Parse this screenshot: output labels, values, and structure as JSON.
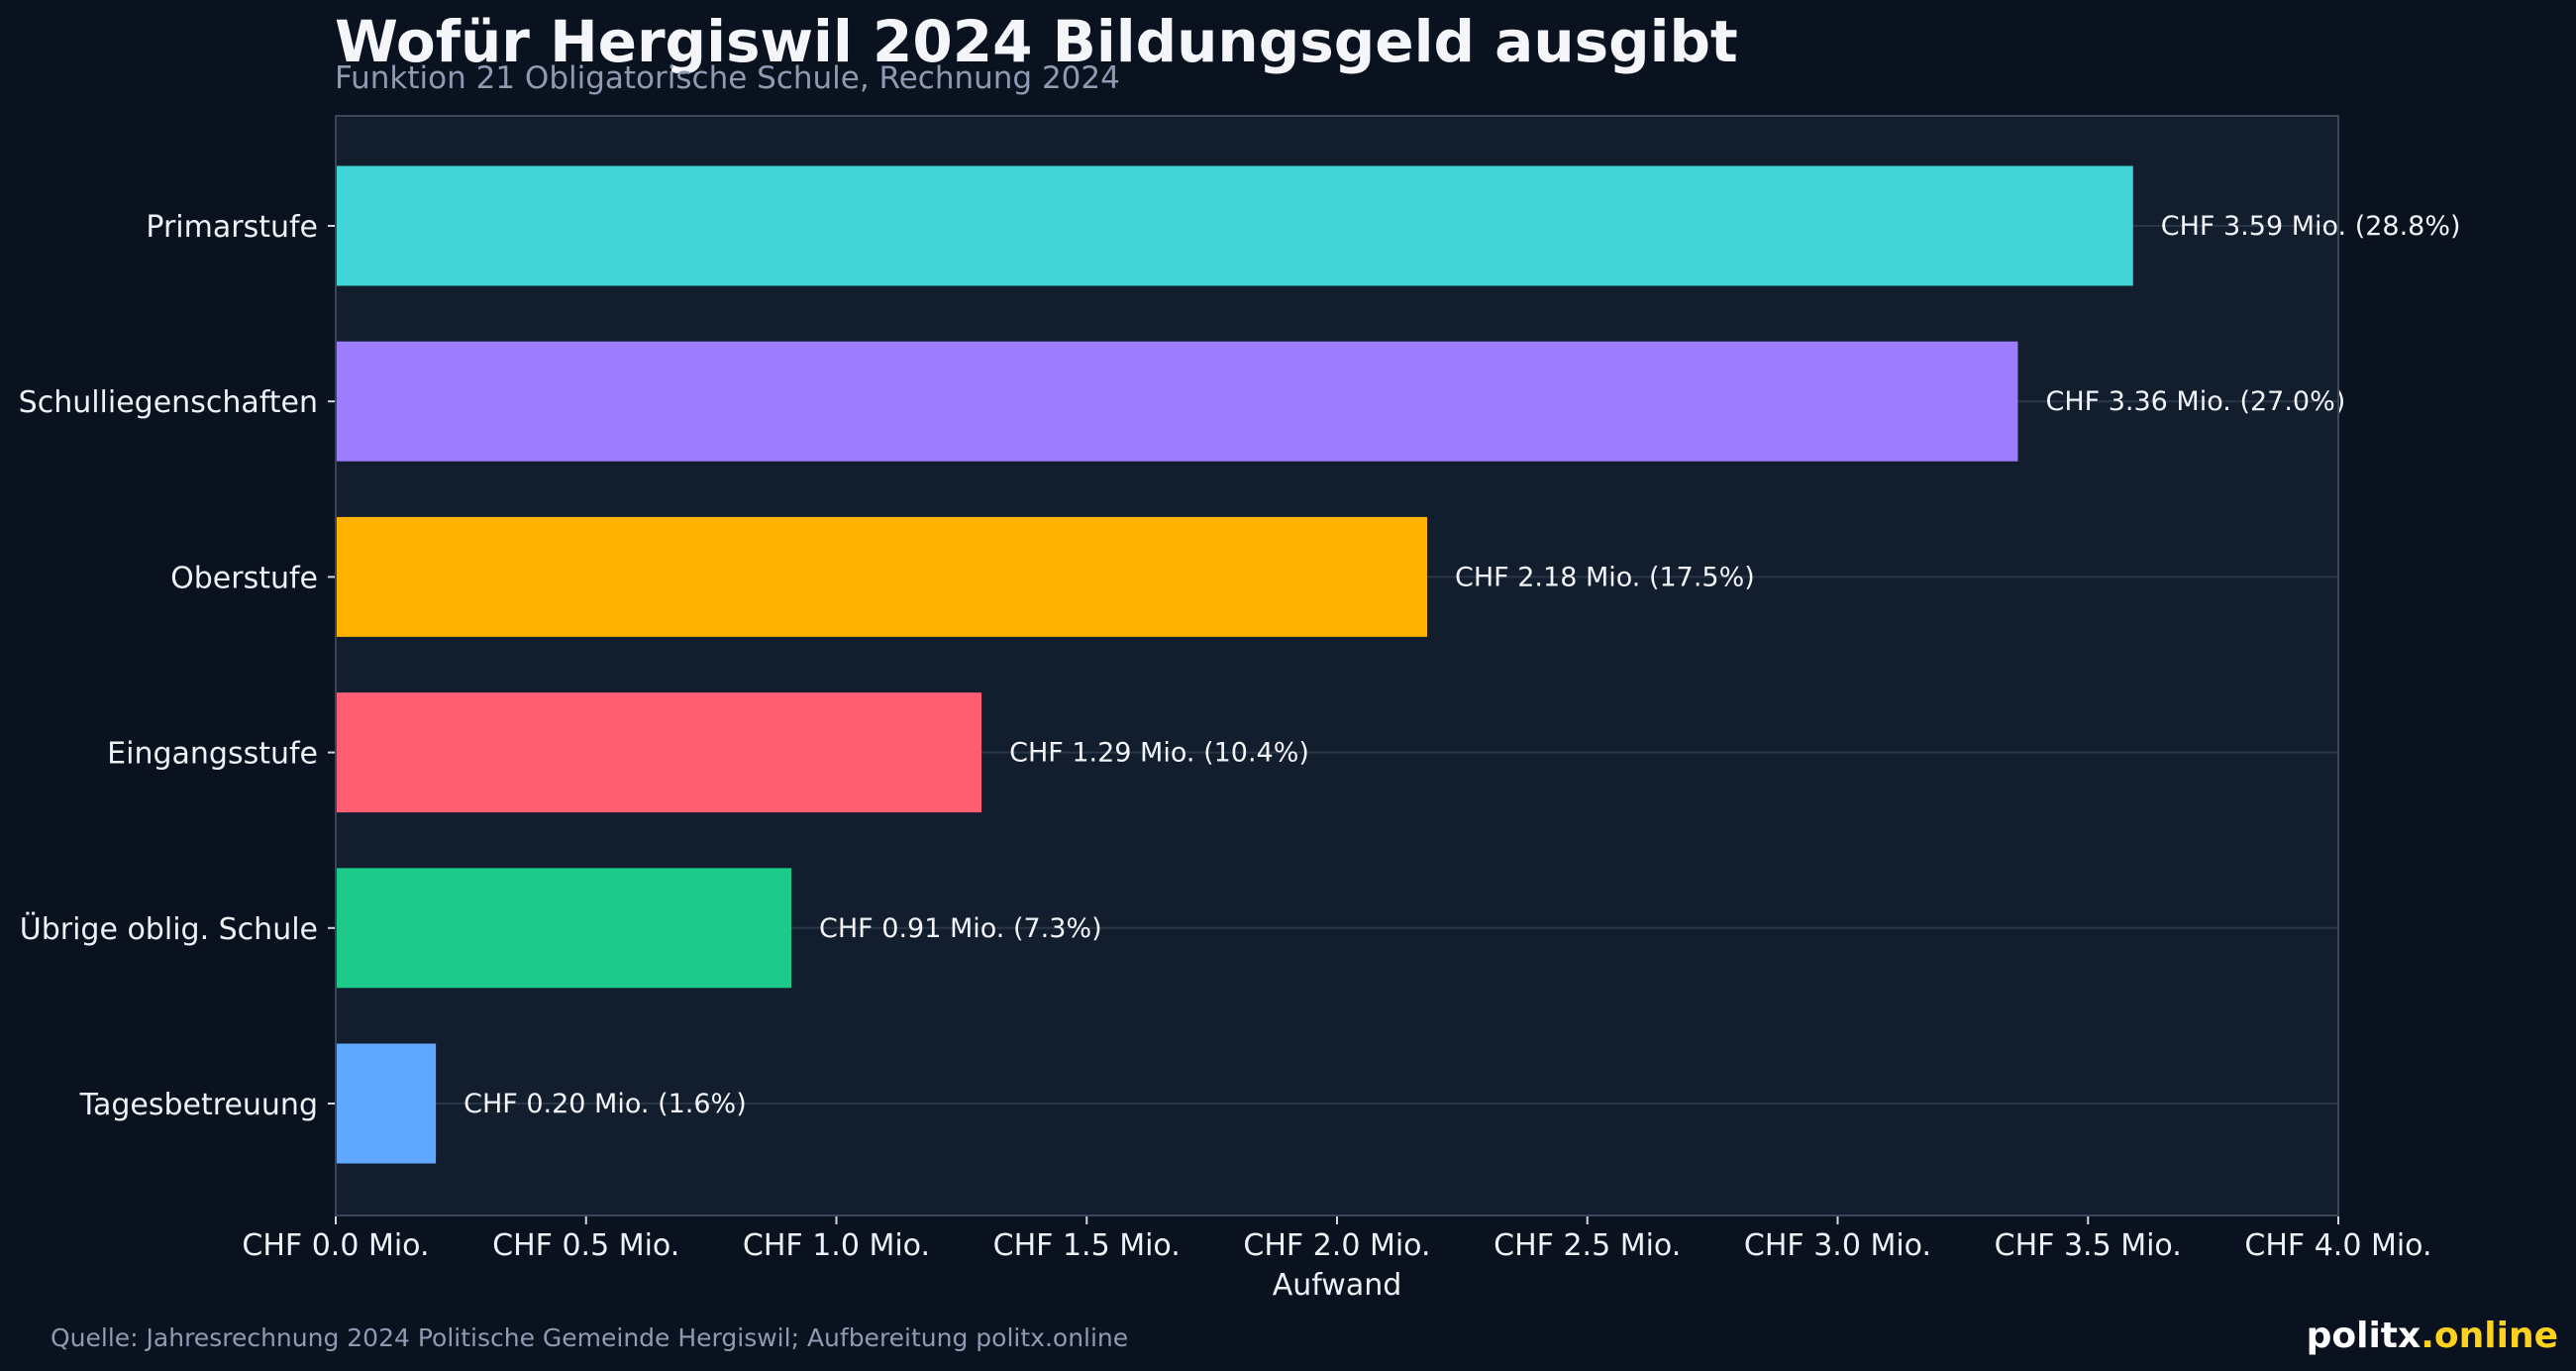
{
  "chart_data": {
    "type": "bar",
    "orientation": "horizontal",
    "title": "Wofür Hergiswil 2024 Bildungsgeld ausgibt",
    "subtitle": "Funktion 21 Obligatorische Schule, Rechnung 2024",
    "xlabel": "Aufwand",
    "ylabel": "",
    "xlim": [
      0,
      4.0
    ],
    "xticks": [
      0.0,
      0.5,
      1.0,
      1.5,
      2.0,
      2.5,
      3.0,
      3.5,
      4.0
    ],
    "xtick_labels": [
      "CHF 0.0 Mio.",
      "CHF 0.5 Mio.",
      "CHF 1.0 Mio.",
      "CHF 1.5 Mio.",
      "CHF 2.0 Mio.",
      "CHF 2.5 Mio.",
      "CHF 3.0 Mio.",
      "CHF 3.5 Mio.",
      "CHF 4.0 Mio."
    ],
    "categories": [
      "Primarstufe",
      "Schulliegenschaften",
      "Oberstufe",
      "Eingangsstufe",
      "Übrige oblig. Schule",
      "Tagesbetreuung"
    ],
    "values": [
      3.59,
      3.36,
      2.18,
      1.29,
      0.91,
      0.2
    ],
    "shares_percent": [
      28.8,
      27.0,
      17.5,
      10.4,
      7.3,
      1.6
    ],
    "data_labels": [
      "CHF 3.59 Mio. (28.8%)",
      "CHF 3.36 Mio. (27.0%)",
      "CHF 2.18 Mio. (17.5%)",
      "CHF 1.29 Mio. (10.4%)",
      "CHF 0.91 Mio. (7.3%)",
      "CHF 0.20 Mio. (1.6%)"
    ],
    "colors": [
      "#43d6d8",
      "#9b7dfd",
      "#ffb300",
      "#ff5e73",
      "#1ccb8b",
      "#60a8ff"
    ],
    "grid": "horizontal lines at each category",
    "legend": "none"
  },
  "source_note": "Quelle: Jahresrechnung 2024 Politische Gemeinde Hergiswil; Aufbereitung politx.online",
  "brand": {
    "part1": "politx",
    "part2": ".online",
    "color1": "#ffffff",
    "color2": "#ffd21f"
  },
  "theme": {
    "page_background": "#0a1220",
    "plot_background": "#121d2d",
    "frame_color": "#3a4657",
    "grid_color": "#2a3647"
  }
}
